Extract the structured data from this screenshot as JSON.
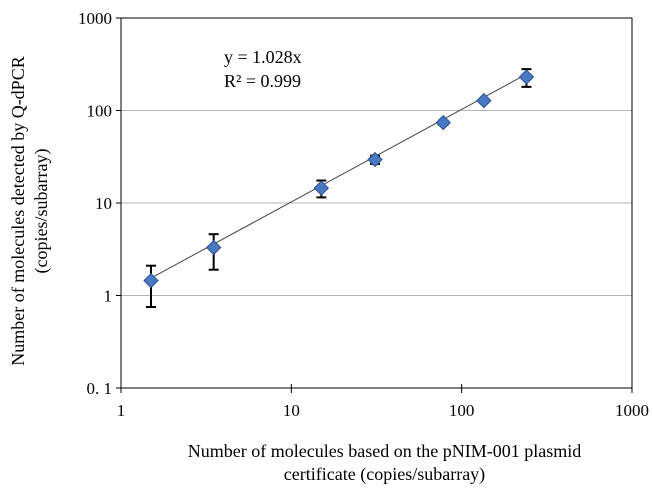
{
  "chart_data": {
    "type": "scatter",
    "title": "",
    "xlabel_line1": "Number of molecules based on the pNIM-001 plasmid",
    "xlabel_line2": "certificate (copies/subarray)",
    "ylabel_line1": "Number of molecules detected  by Q-dPCR",
    "ylabel_line2": "(copies/subarray)",
    "x_scale": "log",
    "y_scale": "log",
    "xlim": [
      1,
      1000
    ],
    "ylim": [
      0.1,
      1000
    ],
    "x_ticks": [
      1,
      10,
      100,
      1000
    ],
    "x_tick_labels": [
      "1",
      "10",
      "100",
      "1000"
    ],
    "y_ticks": [
      0.1,
      1,
      10,
      100,
      1000
    ],
    "y_tick_labels": [
      "0. 1",
      "1",
      "10",
      "100",
      "1000"
    ],
    "grid": "horizontal",
    "legend": "none",
    "marker": "diamond",
    "marker_color": "#4a78c2",
    "marker_edge_color": "#2a4f8f",
    "points": [
      {
        "x": 1.5,
        "y": 1.45,
        "y_err_low": 0.75,
        "y_err_high": 2.1
      },
      {
        "x": 3.5,
        "y": 3.3,
        "y_err_low": 1.9,
        "y_err_high": 4.6
      },
      {
        "x": 15,
        "y": 14.5,
        "y_err_low": 11.5,
        "y_err_high": 17.5
      },
      {
        "x": 31,
        "y": 29.5,
        "y_err_low": 26.5,
        "y_err_high": 32.5
      },
      {
        "x": 78,
        "y": 74,
        "y_err_low": 70,
        "y_err_high": 78
      },
      {
        "x": 135,
        "y": 128,
        "y_err_low": 122,
        "y_err_high": 134
      },
      {
        "x": 240,
        "y": 230,
        "y_err_low": 180,
        "y_err_high": 280
      }
    ],
    "trendline": {
      "slope": 1.028,
      "x_range": [
        1.5,
        240
      ],
      "color": "#444444"
    },
    "annotations": {
      "equation": "y = 1.028x",
      "r_squared": "R² = 0.999"
    }
  }
}
